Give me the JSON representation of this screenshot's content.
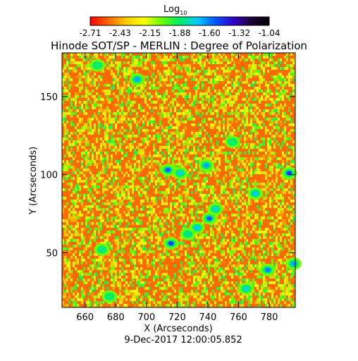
{
  "chart_data": {
    "type": "heatmap",
    "title": "Hinode SOT/SP - MERLIN : Degree of Polarization",
    "subtitle": "9-Dec-2017 12:00:05.852",
    "xlabel": "X (Arcseconds)",
    "ylabel": "Y (Arcseconds)",
    "xlim": [
      645,
      797
    ],
    "ylim": [
      15,
      178
    ],
    "xticks": [
      "660",
      "680",
      "700",
      "720",
      "740",
      "760",
      "780"
    ],
    "yticks": [
      "50",
      "100",
      "150"
    ],
    "colorbar": {
      "label_main": "Log",
      "label_sub": "10",
      "ticks": [
        "-2.71",
        "-2.43",
        "-2.15",
        "-1.88",
        "-1.60",
        "-1.32",
        "-1.04"
      ],
      "range": [
        -2.71,
        -1.04
      ],
      "colormap": [
        "#ff0000",
        "#ff6600",
        "#ffcc00",
        "#ffff00",
        "#66ff00",
        "#00ee66",
        "#00ccff",
        "#0055ff",
        "#3300cc",
        "#1a0033",
        "#000000"
      ]
    },
    "background_level": -2.55,
    "features": [
      {
        "x": 714,
        "y": 103,
        "level": -1.55
      },
      {
        "x": 722,
        "y": 101,
        "level": -1.75
      },
      {
        "x": 739,
        "y": 106,
        "level": -1.65
      },
      {
        "x": 793,
        "y": 101,
        "level": -1.5
      },
      {
        "x": 741,
        "y": 72,
        "level": -1.55
      },
      {
        "x": 733,
        "y": 66,
        "level": -1.7
      },
      {
        "x": 745,
        "y": 78,
        "level": -1.75
      },
      {
        "x": 716,
        "y": 56,
        "level": -1.5
      },
      {
        "x": 727,
        "y": 62,
        "level": -1.85
      },
      {
        "x": 694,
        "y": 161,
        "level": -1.65
      },
      {
        "x": 668,
        "y": 170,
        "level": -1.9
      },
      {
        "x": 779,
        "y": 39,
        "level": -1.6
      },
      {
        "x": 765,
        "y": 27,
        "level": -1.75
      },
      {
        "x": 771,
        "y": 88,
        "level": -1.7
      },
      {
        "x": 676,
        "y": 22,
        "level": -1.9
      },
      {
        "x": 796,
        "y": 43,
        "level": -1.65
      },
      {
        "x": 671,
        "y": 52,
        "level": -1.85
      },
      {
        "x": 756,
        "y": 121,
        "level": -1.9
      }
    ]
  }
}
